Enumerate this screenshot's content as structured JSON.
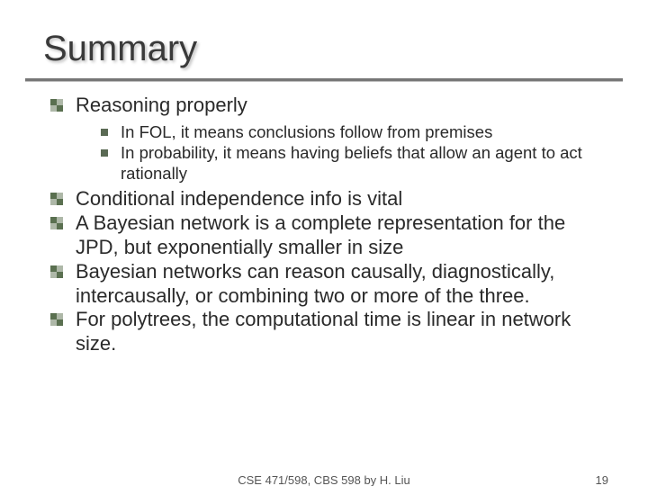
{
  "colors": {
    "title_color": "#3a3a3a",
    "title_shadow": "rgba(0,0,0,0.25)",
    "underline_color": "#777777",
    "body_text": "#2a2a2a",
    "bullet1_dark": "#5a7050",
    "bullet1_light": "#aeb8a8",
    "bullet2_fill": "#5a6a54",
    "footer_text": "#555555",
    "background": "#ffffff"
  },
  "typography": {
    "title_fontsize_pt": 40,
    "level1_fontsize_pt": 22,
    "level2_fontsize_pt": 18.5,
    "footer_fontsize_pt": 13,
    "font_family": "Tahoma, Verdana, sans-serif"
  },
  "slide": {
    "title": "Summary",
    "bullets": [
      {
        "text": "Reasoning properly",
        "sub": [
          "In FOL, it means conclusions follow from premises",
          "In probability, it means having beliefs that allow an agent to act rationally"
        ]
      },
      {
        "text": "Conditional independence info is vital"
      },
      {
        "text": "A Bayesian network is a complete representation for the JPD, but exponentially smaller in size"
      },
      {
        "text": "Bayesian networks can reason causally, diagnostically, intercausally, or combining two or more of the three."
      },
      {
        "text": "For polytrees, the computational time is linear in network size."
      }
    ]
  },
  "footer": {
    "center": "CSE 471/598, CBS 598 by H. Liu",
    "page_number": "19"
  }
}
